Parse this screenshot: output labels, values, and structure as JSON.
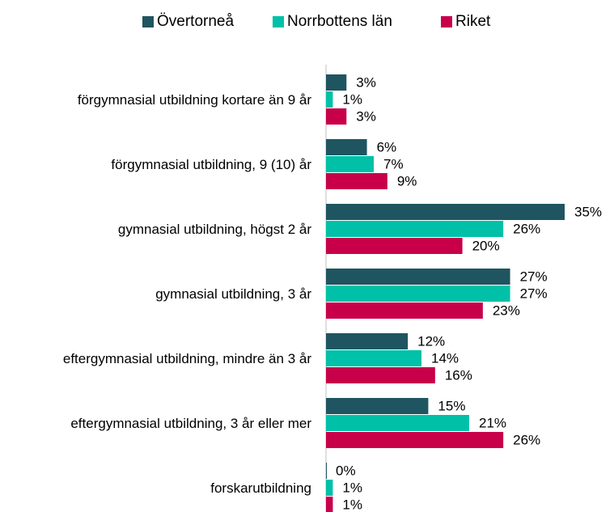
{
  "chart_data": {
    "type": "bar",
    "orientation": "horizontal",
    "categories": [
      "förgymnasial utbildning kortare än 9 år",
      "förgymnasial utbildning, 9 (10) år",
      "gymnasial utbildning, högst 2 år",
      "gymnasial utbildning, 3 år",
      "eftergymnasial utbildning, mindre än 3 år",
      "eftergymnasial utbildning, 3 år eller mer",
      "forskarutbildning"
    ],
    "series": [
      {
        "name": "Övertorneå",
        "color": "#1f5560",
        "values": [
          3,
          6,
          35,
          27,
          12,
          15,
          0
        ],
        "value_labels": [
          "3%",
          "6%",
          "35%",
          "27%",
          "12%",
          "15%",
          "0%"
        ]
      },
      {
        "name": "Norrbottens län",
        "color": "#00c0a8",
        "values": [
          1,
          7,
          26,
          27,
          14,
          21,
          1
        ],
        "value_labels": [
          "1%",
          "7%",
          "26%",
          "27%",
          "14%",
          "21%",
          "1%"
        ]
      },
      {
        "name": "Riket",
        "color": "#c8004a",
        "values": [
          3,
          9,
          20,
          23,
          16,
          26,
          1
        ],
        "value_labels": [
          "3%",
          "9%",
          "20%",
          "23%",
          "16%",
          "26%",
          "1%"
        ]
      }
    ],
    "legend": "top"
  }
}
